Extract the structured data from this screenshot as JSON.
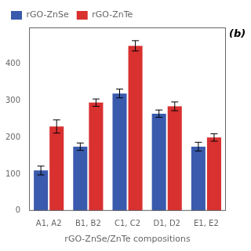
{
  "chart_data": {
    "type": "bar",
    "categories": [
      "A1, A2",
      "B1, B2",
      "C1, C2",
      "D1, D2",
      "E1, E2"
    ],
    "series": [
      {
        "name": "rGO-ZnSe",
        "color": "#3a5aad",
        "values": [
          110,
          175,
          320,
          265,
          175
        ],
        "errors": [
          12,
          10,
          12,
          10,
          12
        ]
      },
      {
        "name": "rGO-ZnTe",
        "color": "#d93030",
        "values": [
          230,
          295,
          450,
          285,
          200
        ],
        "errors": [
          18,
          10,
          14,
          12,
          10
        ]
      }
    ],
    "xlabel": "rGO-ZnSe/ZnTe compositions",
    "ylim": [
      0,
      500
    ],
    "yticks": [
      0,
      100,
      200,
      300,
      400
    ],
    "grid": false,
    "legend": "upper left",
    "annotation": "(b)"
  }
}
